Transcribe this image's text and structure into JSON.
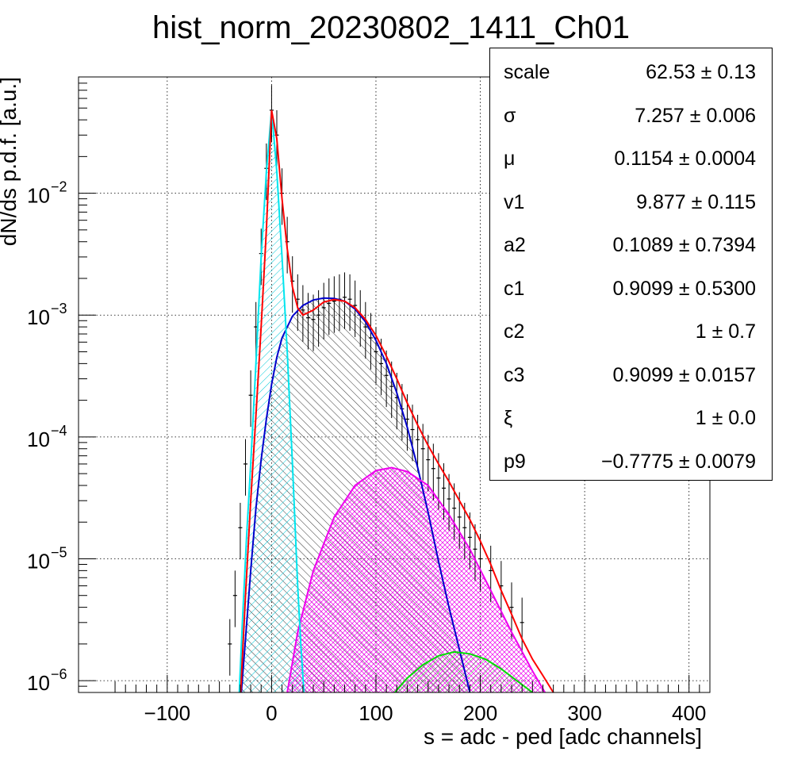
{
  "chart_data": {
    "type": "line",
    "title": "hist_norm_20230802_1411_Ch01",
    "xlabel": "s = adc - ped [adc channels]",
    "ylabel": "dN/ds p.d.f. [a.u.]",
    "xlim": [
      -185,
      420
    ],
    "ylim": [
      8e-07,
      0.09
    ],
    "y_scale": "log",
    "grid": true,
    "x_ticks": [
      -100,
      0,
      100,
      200,
      300,
      400
    ],
    "x_tick_labels": [
      "−100",
      "0",
      "100",
      "200",
      "300",
      "400"
    ],
    "y_ticks": [
      1e-06,
      1e-05,
      0.0001,
      0.001,
      0.01
    ],
    "y_tick_bases": [
      "10",
      "10",
      "10",
      "10",
      "10"
    ],
    "y_tick_exponents": [
      "−6",
      "−5",
      "−4",
      "−3",
      "−2"
    ],
    "series": [
      {
        "color": "#000000",
        "style": "data histogram with error bars",
        "points": [
          [
            -40,
            2e-06
          ],
          [
            -35,
            5e-06
          ],
          [
            -30,
            1.8e-05
          ],
          [
            -25,
            6e-05
          ],
          [
            -20,
            0.00022
          ],
          [
            -15,
            0.0008
          ],
          [
            -10,
            0.0032
          ],
          [
            -5,
            0.016
          ],
          [
            0,
            0.048
          ],
          [
            5,
            0.03
          ],
          [
            10,
            0.01
          ],
          [
            15,
            0.004
          ],
          [
            20,
            0.0019
          ],
          [
            25,
            0.00135
          ],
          [
            30,
            0.0011
          ],
          [
            35,
            0.00095
          ],
          [
            40,
            0.00092
          ],
          [
            45,
            0.001
          ],
          [
            50,
            0.00115
          ],
          [
            55,
            0.00125
          ],
          [
            60,
            0.0013
          ],
          [
            65,
            0.00135
          ],
          [
            70,
            0.0014
          ],
          [
            75,
            0.00135
          ],
          [
            80,
            0.0012
          ],
          [
            85,
            0.001
          ],
          [
            90,
            0.0008
          ],
          [
            95,
            0.00065
          ],
          [
            100,
            0.0005
          ],
          [
            105,
            0.0004
          ],
          [
            110,
            0.00032
          ],
          [
            115,
            0.00026
          ],
          [
            120,
            0.00021
          ],
          [
            125,
            0.00017
          ],
          [
            130,
            0.00014
          ],
          [
            135,
            0.000115
          ],
          [
            140,
            9.5e-05
          ],
          [
            145,
            8e-05
          ],
          [
            150,
            6.5e-05
          ],
          [
            155,
            5.5e-05
          ],
          [
            160,
            4.6e-05
          ],
          [
            165,
            3.8e-05
          ],
          [
            170,
            3.1e-05
          ],
          [
            175,
            2.6e-05
          ],
          [
            180,
            2.2e-05
          ],
          [
            185,
            1.8e-05
          ],
          [
            190,
            1.5e-05
          ],
          [
            195,
            1.2e-05
          ],
          [
            200,
            1e-05
          ],
          [
            210,
            8e-06
          ],
          [
            220,
            6e-06
          ],
          [
            230,
            4e-06
          ],
          [
            240,
            3e-06
          ]
        ]
      },
      {
        "color": "#ff0000",
        "style": "total fit",
        "points": [
          [
            -30,
            7e-07
          ],
          [
            -25,
            5e-06
          ],
          [
            -20,
            3e-05
          ],
          [
            -15,
            0.00015
          ],
          [
            -10,
            0.0008
          ],
          [
            -5,
            0.005
          ],
          [
            0,
            0.048
          ],
          [
            5,
            0.028
          ],
          [
            10,
            0.009
          ],
          [
            15,
            0.0035
          ],
          [
            20,
            0.0017
          ],
          [
            25,
            0.00115
          ],
          [
            30,
            0.001
          ],
          [
            40,
            0.0011
          ],
          [
            50,
            0.00128
          ],
          [
            60,
            0.00134
          ],
          [
            70,
            0.0013
          ],
          [
            80,
            0.00115
          ],
          [
            90,
            0.00092
          ],
          [
            100,
            0.00068
          ],
          [
            110,
            0.00046
          ],
          [
            120,
            0.0003
          ],
          [
            130,
            0.00019
          ],
          [
            140,
            0.000125
          ],
          [
            150,
            8.5e-05
          ],
          [
            160,
            6e-05
          ],
          [
            170,
            4.3e-05
          ],
          [
            180,
            3e-05
          ],
          [
            190,
            2.1e-05
          ],
          [
            200,
            1.4e-05
          ],
          [
            210,
            9e-06
          ],
          [
            220,
            5.5e-06
          ],
          [
            230,
            3.5e-06
          ],
          [
            240,
            2.2e-06
          ],
          [
            250,
            1.5e-06
          ],
          [
            260,
            1.1e-06
          ],
          [
            270,
            8e-07
          ]
        ]
      },
      {
        "color": "#00e5ee",
        "style": "pedestal component, hatched fill",
        "points": [
          [
            -31,
            8e-07
          ],
          [
            -28,
            3e-06
          ],
          [
            -24,
            1.5e-05
          ],
          [
            -20,
            6e-05
          ],
          [
            -15,
            0.0004
          ],
          [
            -10,
            0.003
          ],
          [
            -5,
            0.015
          ],
          [
            0,
            0.048
          ],
          [
            5,
            0.015
          ],
          [
            10,
            0.003
          ],
          [
            15,
            0.0005
          ],
          [
            20,
            6e-05
          ],
          [
            25,
            6e-06
          ],
          [
            28,
            2e-06
          ],
          [
            31,
            8e-07
          ]
        ]
      },
      {
        "color": "#0000cc",
        "style": "1 p.e. component, hatched fill",
        "points": [
          [
            -29,
            8e-07
          ],
          [
            -25,
            2.2e-06
          ],
          [
            -20,
            8e-06
          ],
          [
            -15,
            2.6e-05
          ],
          [
            -10,
            6.5e-05
          ],
          [
            -5,
            0.00014
          ],
          [
            0,
            0.00027
          ],
          [
            5,
            0.00045
          ],
          [
            10,
            0.00065
          ],
          [
            20,
            0.00098
          ],
          [
            30,
            0.0012
          ],
          [
            40,
            0.00133
          ],
          [
            50,
            0.00138
          ],
          [
            60,
            0.00137
          ],
          [
            70,
            0.0013
          ],
          [
            80,
            0.00112
          ],
          [
            90,
            0.00088
          ],
          [
            100,
            0.00062
          ],
          [
            110,
            0.0004
          ],
          [
            120,
            0.00023
          ],
          [
            130,
            0.00012
          ],
          [
            140,
            5.6e-05
          ],
          [
            150,
            2.4e-05
          ],
          [
            160,
            9.5e-06
          ],
          [
            170,
            4e-06
          ],
          [
            180,
            1.8e-06
          ],
          [
            190,
            8e-07
          ]
        ]
      },
      {
        "color": "#ee00ee",
        "style": "2 p.e. component, cross-hatched fill",
        "points": [
          [
            15,
            8e-07
          ],
          [
            25,
            2.5e-06
          ],
          [
            40,
            8e-06
          ],
          [
            60,
            2.2e-05
          ],
          [
            80,
            4e-05
          ],
          [
            100,
            5.3e-05
          ],
          [
            115,
            5.6e-05
          ],
          [
            130,
            5.2e-05
          ],
          [
            150,
            4e-05
          ],
          [
            170,
            2.3e-05
          ],
          [
            190,
            1.2e-05
          ],
          [
            210,
            5.5e-06
          ],
          [
            230,
            2.5e-06
          ],
          [
            250,
            1.2e-06
          ],
          [
            262,
            8e-07
          ]
        ]
      },
      {
        "color": "#00dd00",
        "style": "3 p.e. component, hatched fill",
        "points": [
          [
            118,
            8e-07
          ],
          [
            130,
            1.05e-06
          ],
          [
            145,
            1.35e-06
          ],
          [
            160,
            1.6e-06
          ],
          [
            175,
            1.72e-06
          ],
          [
            190,
            1.66e-06
          ],
          [
            205,
            1.5e-06
          ],
          [
            220,
            1.25e-06
          ],
          [
            235,
            1e-06
          ],
          [
            250,
            8e-07
          ]
        ]
      }
    ],
    "fit_parameters": [
      {
        "name": "scale",
        "value": "62.53 ± 0.13"
      },
      {
        "name": "σ",
        "value": "7.257 ± 0.006"
      },
      {
        "name": "μ",
        "value": "0.1154 ± 0.0004"
      },
      {
        "name": "v1",
        "value": "9.877 ± 0.115"
      },
      {
        "name": "a2",
        "value": "0.1089 ± 0.7394"
      },
      {
        "name": "c1",
        "value": "0.9099 ± 0.5300"
      },
      {
        "name": "c2",
        "value": "1 ± 0.7"
      },
      {
        "name": "c3",
        "value": "0.9099 ± 0.0157"
      },
      {
        "name": "ξ",
        "value": "1 ± 0.0"
      },
      {
        "name": "p9",
        "value": "−0.7775 ± 0.0079"
      }
    ]
  }
}
